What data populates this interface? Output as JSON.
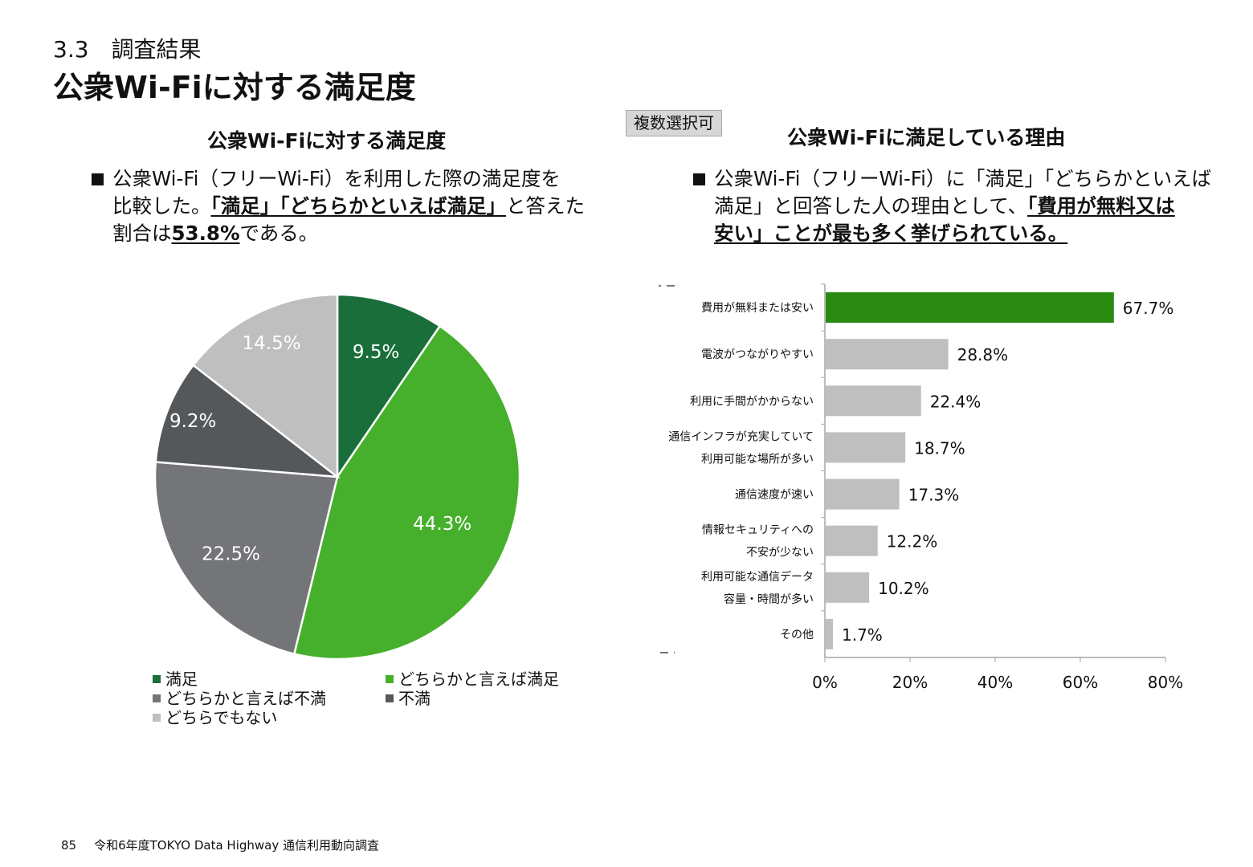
{
  "header": {
    "section": "3.3　調査結果",
    "title": "公衆Wi-Fiに対する満足度"
  },
  "left": {
    "heading": "公衆Wi-Fiに対する満足度",
    "bullet": {
      "line1": "公衆Wi-Fi（フリーWi-Fi）を利用した際の満足度を",
      "line2_pre": "比較した。",
      "line2_bold": "「満足」「どちらかといえば満足」",
      "line2_post": "と答えた",
      "line3_pre": "割合は",
      "line3_bold": "53.8%",
      "line3_post": "である。"
    }
  },
  "tag": "複数選択可",
  "right": {
    "heading": "公衆Wi-Fiに満足している理由",
    "bullet": {
      "line1": "公衆Wi-Fi（フリーWi-Fi）に「満足」「どちらかといえば",
      "line2_pre": "満足」と回答した人の理由として、",
      "line2_bold": "「費用が無料又は",
      "line3_bold": "安い」ことが最も多く挙げられている。"
    }
  },
  "footer": {
    "page": "85",
    "text": "令和6年度TOKYO Data Highway 通信利用動向調査"
  },
  "legend": [
    {
      "label": "満足",
      "color": "#1a6e3a"
    },
    {
      "label": "どちらかと言えば満足",
      "color": "#46b02c"
    },
    {
      "label": "どちらかと言えば不満",
      "color": "#737578"
    },
    {
      "label": "不満",
      "color": "#55585b"
    },
    {
      "label": "どちらでもない",
      "color": "#bfbfbf"
    }
  ],
  "chart_data": [
    {
      "type": "pie",
      "title": "公衆Wi-Fiに対する満足度",
      "slices": [
        {
          "label": "満足",
          "value": 9.5,
          "display": "9.5%",
          "color": "#1a6e3a"
        },
        {
          "label": "どちらかと言えば満足",
          "value": 44.3,
          "display": "44.3%",
          "color": "#46b02c"
        },
        {
          "label": "どちらかと言えば不満",
          "value": 22.5,
          "display": "22.5%",
          "color": "#737578"
        },
        {
          "label": "不満",
          "value": 9.2,
          "display": "9.2%",
          "color": "#55585b"
        },
        {
          "label": "どちらでもない",
          "value": 14.5,
          "display": "14.5%",
          "color": "#bfbfbf"
        }
      ]
    },
    {
      "type": "bar",
      "orientation": "horizontal",
      "title": "公衆Wi-Fiに満足している理由",
      "categories": [
        [
          "費用が無料または安い"
        ],
        [
          "電波がつながりやすい"
        ],
        [
          "利用に手間がかからない"
        ],
        [
          "通信インフラが充実していて",
          "利用可能な場所が多い"
        ],
        [
          "通信速度が速い"
        ],
        [
          "情報セキュリティへの",
          "不安が少ない"
        ],
        [
          "利用可能な通信データ",
          "容量・時間が多い"
        ],
        [
          "その他"
        ]
      ],
      "values": [
        67.7,
        28.8,
        22.4,
        18.7,
        17.3,
        12.2,
        10.2,
        1.7
      ],
      "value_labels": [
        "67.7%",
        "28.8%",
        "22.4%",
        "18.7%",
        "17.3%",
        "12.2%",
        "10.2%",
        "1.7%"
      ],
      "xlim": [
        0,
        80
      ],
      "x_ticks": [
        0,
        20,
        40,
        60,
        80
      ],
      "x_tick_labels": [
        "0%",
        "20%",
        "40%",
        "60%",
        "80%"
      ],
      "highlight_color": "#2b8a12",
      "bar_color": "#bfbfbf",
      "grid": false
    }
  ]
}
